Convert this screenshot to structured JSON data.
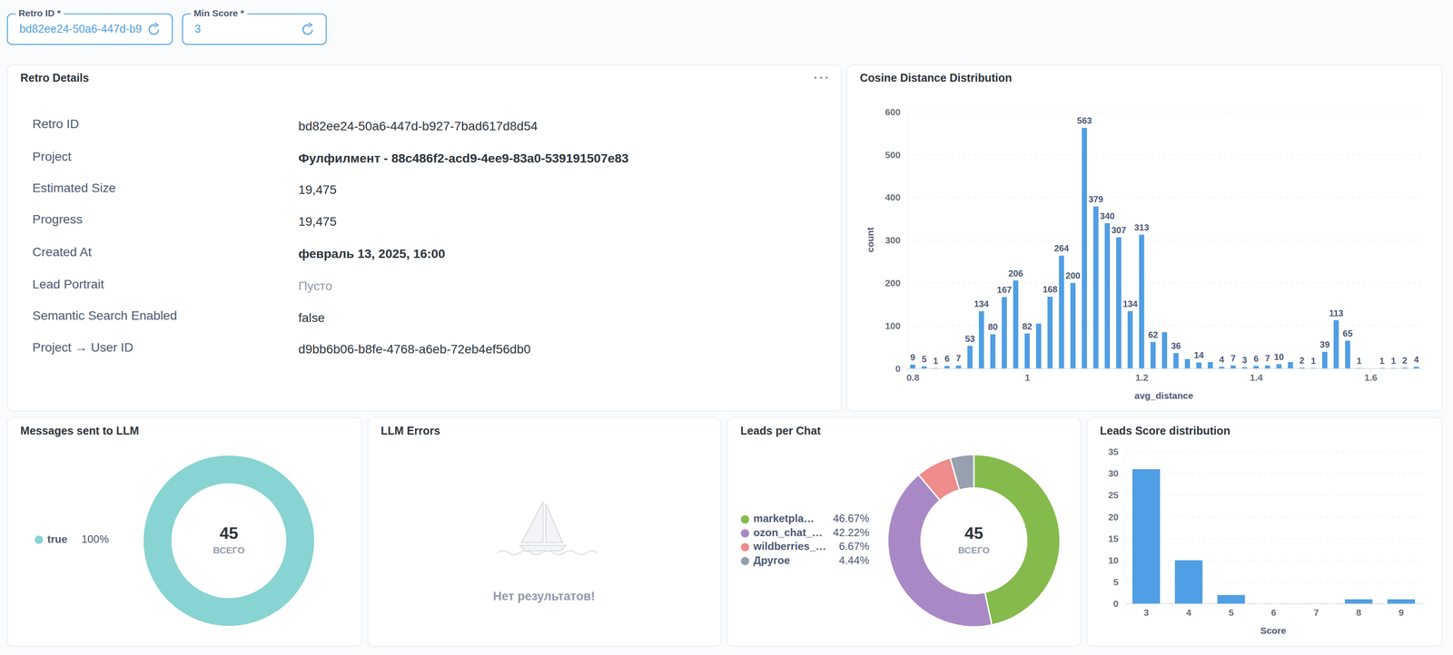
{
  "filters": [
    {
      "label": "Retro ID *",
      "value": "bd82ee24-50a6-447d-b9"
    },
    {
      "label": "Min Score *",
      "value": "3"
    }
  ],
  "details": {
    "title": "Retro Details",
    "rows": [
      [
        "Retro ID",
        "bd82ee24-50a6-447d-b927-7bad617d8d54"
      ],
      [
        "Project",
        "Фулфилмент - 88c486f2-acd9-4ee9-83a0-539191507e83"
      ],
      [
        "Estimated Size",
        "19,475"
      ],
      [
        "Progress",
        "19,475"
      ],
      [
        "Created At",
        "февраль 13, 2025, 16:00"
      ],
      [
        "Lead Portrait",
        "Пусто"
      ],
      [
        "Semantic Search Enabled",
        "false"
      ],
      [
        "Project → User ID",
        "d9bb6b06-b8fe-4768-a6eb-72eb4ef56db0"
      ]
    ]
  },
  "chart_data": [
    {
      "type": "bar",
      "title": "Cosine Distance Distribution",
      "x_label": "avg_distance",
      "y_label": "count",
      "x": [
        0.8,
        0.82,
        0.84,
        0.86,
        0.88,
        0.9,
        0.92,
        0.94,
        0.96,
        0.98,
        1.0,
        1.02,
        1.04,
        1.06,
        1.08,
        1.1,
        1.12,
        1.14,
        1.16,
        1.18,
        1.2,
        1.22,
        1.24,
        1.26,
        1.28,
        1.3,
        1.32,
        1.34,
        1.36,
        1.38,
        1.4,
        1.42,
        1.44,
        1.46,
        1.48,
        1.5,
        1.52,
        1.54,
        1.56,
        1.58,
        1.6,
        1.62,
        1.64,
        1.66,
        1.68
      ],
      "values": [
        9,
        5,
        1,
        6,
        7,
        53,
        134,
        80,
        167,
        206,
        82,
        105,
        168,
        264,
        200,
        563,
        379,
        340,
        307,
        134,
        313,
        62,
        85,
        36,
        22,
        14,
        15,
        4,
        7,
        3,
        6,
        7,
        10,
        15,
        2,
        1,
        39,
        113,
        65,
        1,
        0,
        1,
        1,
        2,
        4
      ],
      "value_labels": [
        "9",
        "5",
        "1",
        "6",
        "7",
        "53",
        "134",
        "80",
        "167",
        "206",
        "82",
        null,
        "168",
        "264",
        "200",
        "563",
        "379",
        "340",
        "307",
        "134",
        "313",
        "62",
        null,
        "36",
        null,
        "14",
        null,
        "4",
        "7",
        "3",
        "6",
        "7",
        "10",
        null,
        "2",
        "1",
        "39",
        "113",
        "65",
        "1",
        null,
        "1",
        "1",
        "2",
        "4"
      ],
      "color": "#509ee3",
      "xlim": [
        0.79,
        1.69
      ],
      "xticks": [
        0.8,
        1,
        1.2,
        1.4,
        1.6
      ],
      "ylim": [
        0,
        600
      ],
      "yticks": [
        0,
        100,
        200,
        300,
        400,
        500,
        600
      ],
      "grid": true
    },
    {
      "type": "pie",
      "title": "Messages sent to LLM",
      "categories": [
        "true"
      ],
      "values": [
        100
      ],
      "value_labels": [
        "100%"
      ],
      "colors": [
        "#88d4d2"
      ],
      "total": 45,
      "total_label": "ВСЕГО",
      "legend": "left"
    },
    {
      "type": "empty",
      "title": "LLM Errors",
      "message": "Нет результатов!"
    },
    {
      "type": "pie",
      "title": "Leads per Chat",
      "categories": [
        "marketpla…",
        "ozon_chat_…",
        "wildberries_…",
        "Другое"
      ],
      "values": [
        46.67,
        42.22,
        6.67,
        4.44
      ],
      "value_labels": [
        "46.67%",
        "42.22%",
        "6.67%",
        "4.44%"
      ],
      "colors": [
        "#84bb4c",
        "#a989c5",
        "#ef8c8c",
        "#98a0ad"
      ],
      "total": 45,
      "total_label": "ВСЕГО",
      "legend": "left"
    },
    {
      "type": "bar",
      "title": "Leads Score distribution",
      "x_label": "Score",
      "categories": [
        "3",
        "4",
        "5",
        "6",
        "7",
        "8",
        "9"
      ],
      "values": [
        31,
        10,
        2,
        0,
        0,
        1,
        1
      ],
      "color": "#509ee3",
      "ylim": [
        0,
        35
      ],
      "yticks": [
        0,
        5,
        10,
        15,
        20,
        25,
        30,
        35
      ],
      "grid": true
    }
  ]
}
